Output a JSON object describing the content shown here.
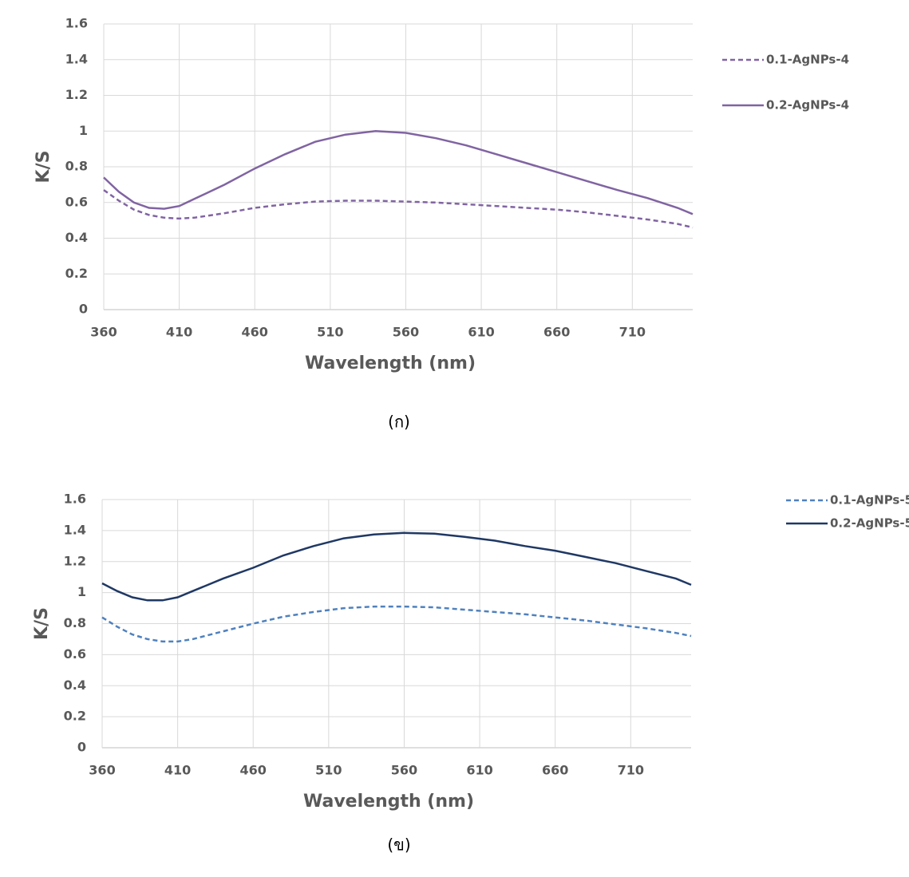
{
  "chart_data": [
    {
      "type": "line",
      "xlabel": "Wavelength (nm)",
      "ylabel": "K/S",
      "caption": "(ก)",
      "x": [
        360,
        370,
        380,
        390,
        400,
        410,
        420,
        440,
        460,
        480,
        500,
        520,
        540,
        560,
        580,
        600,
        620,
        640,
        660,
        680,
        700,
        720,
        740,
        750
      ],
      "xlim": [
        360,
        750
      ],
      "xticks": [
        360,
        410,
        460,
        510,
        560,
        610,
        660,
        710
      ],
      "ylim": [
        0,
        1.6
      ],
      "yticks": [
        0,
        0.2,
        0.4,
        0.6,
        0.8,
        1,
        1.2,
        1.4,
        1.6
      ],
      "grid": true,
      "legend": "right",
      "series": [
        {
          "name": "0.1-AgNPs-4",
          "color": "#8064a2",
          "style": "dashed",
          "values": [
            0.67,
            0.61,
            0.56,
            0.53,
            0.515,
            0.51,
            0.515,
            0.54,
            0.57,
            0.59,
            0.605,
            0.61,
            0.61,
            0.605,
            0.6,
            0.59,
            0.58,
            0.57,
            0.56,
            0.545,
            0.525,
            0.505,
            0.48,
            0.46
          ]
        },
        {
          "name": "0.2-AgNPs-4",
          "color": "#8064a2",
          "style": "solid",
          "values": [
            0.74,
            0.66,
            0.6,
            0.57,
            0.565,
            0.58,
            0.62,
            0.7,
            0.79,
            0.87,
            0.94,
            0.98,
            1.0,
            0.99,
            0.96,
            0.92,
            0.87,
            0.82,
            0.77,
            0.72,
            0.67,
            0.625,
            0.57,
            0.535
          ]
        }
      ]
    },
    {
      "type": "line",
      "xlabel": "Wavelength (nm)",
      "ylabel": "K/S",
      "caption": "(ข)",
      "x": [
        360,
        370,
        380,
        390,
        400,
        410,
        420,
        440,
        460,
        480,
        500,
        520,
        540,
        560,
        580,
        600,
        620,
        640,
        660,
        680,
        700,
        720,
        740,
        750
      ],
      "xlim": [
        360,
        750
      ],
      "xticks": [
        360,
        410,
        460,
        510,
        560,
        610,
        660,
        710
      ],
      "ylim": [
        0,
        1.6
      ],
      "yticks": [
        0,
        0.2,
        0.4,
        0.6,
        0.8,
        1,
        1.2,
        1.4,
        1.6
      ],
      "grid": true,
      "legend": "right",
      "series": [
        {
          "name": "0.1-AgNPs-5",
          "color": "#4f81bd",
          "style": "dashed",
          "values": [
            0.84,
            0.78,
            0.73,
            0.7,
            0.685,
            0.685,
            0.7,
            0.75,
            0.8,
            0.845,
            0.875,
            0.9,
            0.91,
            0.91,
            0.905,
            0.89,
            0.875,
            0.86,
            0.84,
            0.82,
            0.795,
            0.77,
            0.74,
            0.72
          ]
        },
        {
          "name": "0.2-AgNPs-5",
          "color": "#1f3864",
          "style": "solid",
          "values": [
            1.06,
            1.01,
            0.97,
            0.95,
            0.95,
            0.97,
            1.01,
            1.09,
            1.16,
            1.24,
            1.3,
            1.35,
            1.375,
            1.385,
            1.38,
            1.36,
            1.335,
            1.3,
            1.27,
            1.23,
            1.19,
            1.14,
            1.09,
            1.05
          ]
        }
      ]
    }
  ]
}
